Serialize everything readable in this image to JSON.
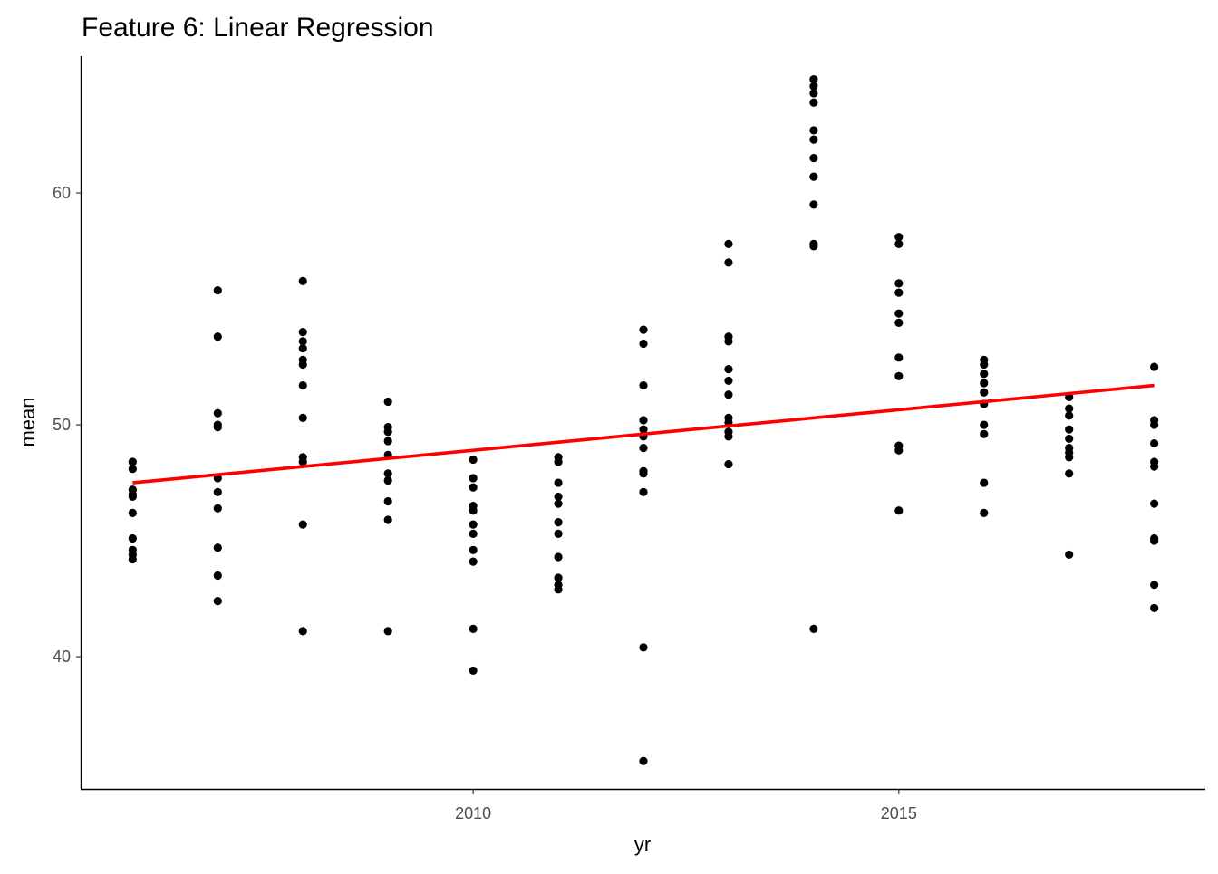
{
  "chart_data": {
    "type": "scatter",
    "title": "Feature 6: Linear Regression",
    "xlabel": "yr",
    "ylabel": "mean",
    "xlim": [
      2005.4,
      2018.6
    ],
    "ylim": [
      34.3,
      65.9
    ],
    "xticks": [
      2010,
      2015
    ],
    "xtick_labels": [
      "2010",
      "2015"
    ],
    "yticks": [
      40,
      50,
      60
    ],
    "ytick_labels": [
      "40",
      "50",
      "60"
    ],
    "grid": false,
    "legend": "none",
    "colors": {
      "points": "#000000",
      "fit": "#ff0000",
      "axis": "#000000"
    },
    "points": [
      {
        "x": 2006,
        "y": 48.4
      },
      {
        "x": 2006,
        "y": 48.1
      },
      {
        "x": 2006,
        "y": 47.2
      },
      {
        "x": 2006,
        "y": 47.0
      },
      {
        "x": 2006,
        "y": 46.9
      },
      {
        "x": 2006,
        "y": 46.2
      },
      {
        "x": 2006,
        "y": 45.1
      },
      {
        "x": 2006,
        "y": 44.6
      },
      {
        "x": 2006,
        "y": 44.4
      },
      {
        "x": 2006,
        "y": 44.2
      },
      {
        "x": 2007,
        "y": 55.8
      },
      {
        "x": 2007,
        "y": 53.8
      },
      {
        "x": 2007,
        "y": 50.5
      },
      {
        "x": 2007,
        "y": 50.0
      },
      {
        "x": 2007,
        "y": 49.9
      },
      {
        "x": 2007,
        "y": 47.7
      },
      {
        "x": 2007,
        "y": 47.1
      },
      {
        "x": 2007,
        "y": 46.4
      },
      {
        "x": 2007,
        "y": 44.7
      },
      {
        "x": 2007,
        "y": 43.5
      },
      {
        "x": 2007,
        "y": 42.4
      },
      {
        "x": 2008,
        "y": 56.2
      },
      {
        "x": 2008,
        "y": 54.0
      },
      {
        "x": 2008,
        "y": 53.6
      },
      {
        "x": 2008,
        "y": 53.3
      },
      {
        "x": 2008,
        "y": 52.8
      },
      {
        "x": 2008,
        "y": 52.6
      },
      {
        "x": 2008,
        "y": 51.7
      },
      {
        "x": 2008,
        "y": 50.3
      },
      {
        "x": 2008,
        "y": 48.6
      },
      {
        "x": 2008,
        "y": 48.4
      },
      {
        "x": 2008,
        "y": 45.7
      },
      {
        "x": 2008,
        "y": 41.1
      },
      {
        "x": 2009,
        "y": 51.0
      },
      {
        "x": 2009,
        "y": 49.9
      },
      {
        "x": 2009,
        "y": 49.7
      },
      {
        "x": 2009,
        "y": 49.3
      },
      {
        "x": 2009,
        "y": 48.7
      },
      {
        "x": 2009,
        "y": 47.9
      },
      {
        "x": 2009,
        "y": 47.6
      },
      {
        "x": 2009,
        "y": 46.7
      },
      {
        "x": 2009,
        "y": 45.9
      },
      {
        "x": 2009,
        "y": 41.1
      },
      {
        "x": 2010,
        "y": 48.5
      },
      {
        "x": 2010,
        "y": 47.7
      },
      {
        "x": 2010,
        "y": 47.3
      },
      {
        "x": 2010,
        "y": 46.5
      },
      {
        "x": 2010,
        "y": 46.3
      },
      {
        "x": 2010,
        "y": 45.7
      },
      {
        "x": 2010,
        "y": 45.3
      },
      {
        "x": 2010,
        "y": 44.6
      },
      {
        "x": 2010,
        "y": 44.1
      },
      {
        "x": 2010,
        "y": 41.2
      },
      {
        "x": 2010,
        "y": 39.4
      },
      {
        "x": 2011,
        "y": 48.6
      },
      {
        "x": 2011,
        "y": 48.4
      },
      {
        "x": 2011,
        "y": 47.5
      },
      {
        "x": 2011,
        "y": 46.9
      },
      {
        "x": 2011,
        "y": 46.6
      },
      {
        "x": 2011,
        "y": 45.8
      },
      {
        "x": 2011,
        "y": 45.3
      },
      {
        "x": 2011,
        "y": 44.3
      },
      {
        "x": 2011,
        "y": 43.4
      },
      {
        "x": 2011,
        "y": 43.1
      },
      {
        "x": 2011,
        "y": 42.9
      },
      {
        "x": 2012,
        "y": 54.1
      },
      {
        "x": 2012,
        "y": 53.5
      },
      {
        "x": 2012,
        "y": 51.7
      },
      {
        "x": 2012,
        "y": 50.2
      },
      {
        "x": 2012,
        "y": 49.8
      },
      {
        "x": 2012,
        "y": 49.5
      },
      {
        "x": 2012,
        "y": 49.0
      },
      {
        "x": 2012,
        "y": 48.0
      },
      {
        "x": 2012,
        "y": 47.9
      },
      {
        "x": 2012,
        "y": 47.1
      },
      {
        "x": 2012,
        "y": 40.4
      },
      {
        "x": 2012,
        "y": 35.5
      },
      {
        "x": 2013,
        "y": 57.8
      },
      {
        "x": 2013,
        "y": 57.0
      },
      {
        "x": 2013,
        "y": 53.8
      },
      {
        "x": 2013,
        "y": 53.6
      },
      {
        "x": 2013,
        "y": 52.4
      },
      {
        "x": 2013,
        "y": 51.9
      },
      {
        "x": 2013,
        "y": 51.3
      },
      {
        "x": 2013,
        "y": 50.3
      },
      {
        "x": 2013,
        "y": 50.1
      },
      {
        "x": 2013,
        "y": 49.7
      },
      {
        "x": 2013,
        "y": 49.5
      },
      {
        "x": 2013,
        "y": 48.3
      },
      {
        "x": 2014,
        "y": 64.9
      },
      {
        "x": 2014,
        "y": 64.6
      },
      {
        "x": 2014,
        "y": 64.3
      },
      {
        "x": 2014,
        "y": 63.9
      },
      {
        "x": 2014,
        "y": 62.7
      },
      {
        "x": 2014,
        "y": 62.3
      },
      {
        "x": 2014,
        "y": 61.5
      },
      {
        "x": 2014,
        "y": 60.7
      },
      {
        "x": 2014,
        "y": 59.5
      },
      {
        "x": 2014,
        "y": 57.8
      },
      {
        "x": 2014,
        "y": 57.7
      },
      {
        "x": 2014,
        "y": 41.2
      },
      {
        "x": 2015,
        "y": 58.1
      },
      {
        "x": 2015,
        "y": 57.8
      },
      {
        "x": 2015,
        "y": 56.1
      },
      {
        "x": 2015,
        "y": 55.7
      },
      {
        "x": 2015,
        "y": 54.8
      },
      {
        "x": 2015,
        "y": 54.4
      },
      {
        "x": 2015,
        "y": 52.9
      },
      {
        "x": 2015,
        "y": 52.1
      },
      {
        "x": 2015,
        "y": 49.1
      },
      {
        "x": 2015,
        "y": 48.9
      },
      {
        "x": 2015,
        "y": 46.3
      },
      {
        "x": 2016,
        "y": 52.8
      },
      {
        "x": 2016,
        "y": 52.6
      },
      {
        "x": 2016,
        "y": 52.2
      },
      {
        "x": 2016,
        "y": 51.8
      },
      {
        "x": 2016,
        "y": 51.4
      },
      {
        "x": 2016,
        "y": 50.9
      },
      {
        "x": 2016,
        "y": 50.0
      },
      {
        "x": 2016,
        "y": 49.6
      },
      {
        "x": 2016,
        "y": 47.5
      },
      {
        "x": 2016,
        "y": 46.2
      },
      {
        "x": 2017,
        "y": 51.2
      },
      {
        "x": 2017,
        "y": 50.7
      },
      {
        "x": 2017,
        "y": 50.4
      },
      {
        "x": 2017,
        "y": 49.8
      },
      {
        "x": 2017,
        "y": 49.4
      },
      {
        "x": 2017,
        "y": 49.0
      },
      {
        "x": 2017,
        "y": 48.8
      },
      {
        "x": 2017,
        "y": 48.6
      },
      {
        "x": 2017,
        "y": 47.9
      },
      {
        "x": 2017,
        "y": 44.4
      },
      {
        "x": 2018,
        "y": 52.5
      },
      {
        "x": 2018,
        "y": 50.2
      },
      {
        "x": 2018,
        "y": 50.0
      },
      {
        "x": 2018,
        "y": 49.2
      },
      {
        "x": 2018,
        "y": 48.4
      },
      {
        "x": 2018,
        "y": 48.2
      },
      {
        "x": 2018,
        "y": 46.6
      },
      {
        "x": 2018,
        "y": 45.1
      },
      {
        "x": 2018,
        "y": 45.0
      },
      {
        "x": 2018,
        "y": 43.1
      },
      {
        "x": 2018,
        "y": 42.1
      }
    ],
    "fit_line": {
      "x": [
        2006,
        2018
      ],
      "y": [
        47.5,
        51.7
      ]
    }
  }
}
